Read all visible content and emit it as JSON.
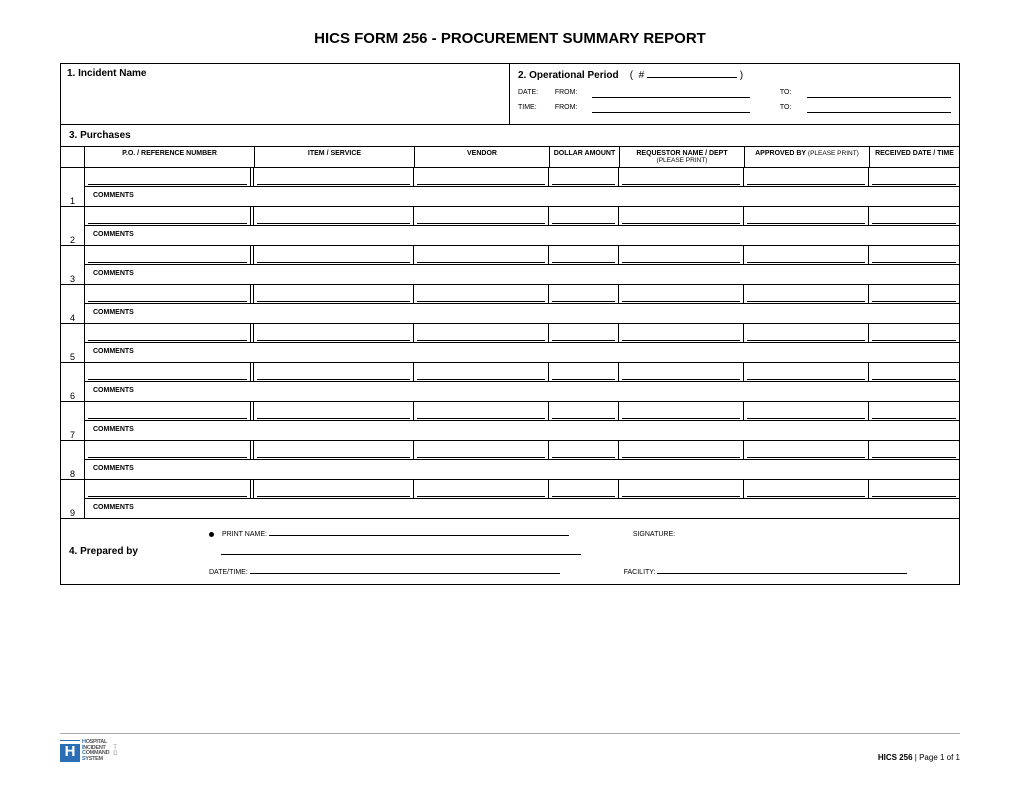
{
  "title": "HICS FORM 256 - PROCUREMENT SUMMARY REPORT",
  "sections": {
    "incident": {
      "label": "1. Incident Name"
    },
    "operational": {
      "label": "2. Operational Period",
      "hash": "(   #",
      "close_paren": ")",
      "date_lbl": "DATE:",
      "time_lbl": "TIME:",
      "from_lbl": "FROM:",
      "to_lbl": "TO:"
    },
    "purchases": {
      "label": "3. Purchases",
      "columns": {
        "po": "P.O. / REFERENCE NUMBER",
        "item": "ITEM / SERVICE",
        "vendor": "VENDOR",
        "amount": "DOLLAR AMOUNT",
        "requestor": "REQUESTOR NAME / DEPT",
        "requestor_sub": "(PLEASE PRINT)",
        "approved": "APPROVED BY",
        "approved_sub": "(PLEASE PRINT)",
        "received": "RECEIVED DATE / TIME"
      },
      "comments_label": "COMMENTS",
      "rows": [
        "1",
        "2",
        "3",
        "4",
        "5",
        "6",
        "7",
        "8",
        "9"
      ]
    },
    "prepared": {
      "label": "4.  Prepared by",
      "print_name": "PRINT NAME:",
      "signature": "SIGNATURE:",
      "datetime": "DATE/TIME:",
      "facility": "FACILITY:"
    }
  },
  "logo": {
    "h": "H",
    "lines": [
      "HOSPITAL",
      "INCIDENT",
      "COMMAND",
      "SYSTEM"
    ],
    "badge_top": "T",
    "badge_bot": "D"
  },
  "footer": {
    "form": "HICS 256",
    "page": "Page 1 of 1"
  },
  "style": {
    "page_bg": "#ffffff",
    "border_color": "#000000",
    "logo_blue": "#2a6fb5",
    "title_fontsize": 15,
    "label_fontsize": 10,
    "header_fontsize": 7,
    "footer_fontsize": 8
  }
}
